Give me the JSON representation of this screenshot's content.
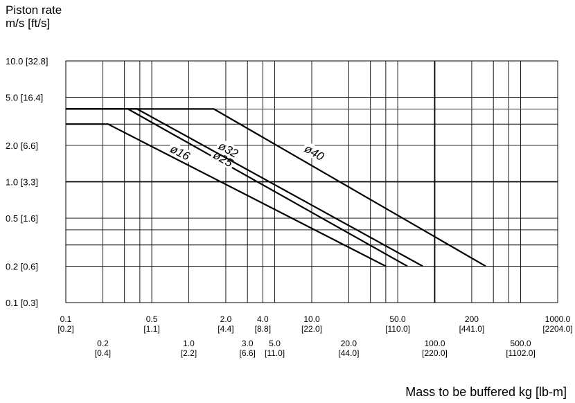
{
  "chart_data": {
    "type": "line",
    "ylabel_line1": "Piston rate",
    "ylabel_line2": "m/s [ft/s]",
    "xlabel": "Mass to be buffered kg [lb-m]",
    "x_scale": "log",
    "y_scale": "log",
    "xlim": [
      0.1,
      1000
    ],
    "ylim": [
      0.1,
      10
    ],
    "grid": true,
    "y_ticks": [
      {
        "value": 10,
        "label": "10.0 [32.8]"
      },
      {
        "value": 5,
        "label": "5.0 [16.4]"
      },
      {
        "value": 2,
        "label": "2.0 [6.6]"
      },
      {
        "value": 1,
        "label": "1.0 [3.3]"
      },
      {
        "value": 0.5,
        "label": "0.5 [1.6]"
      },
      {
        "value": 0.2,
        "label": "0.2 [0.6]"
      },
      {
        "value": 0.1,
        "label": "0.1 [0.3]"
      }
    ],
    "x_ticks": [
      {
        "value": 0.1,
        "line1": "0.1",
        "line2": "[0.2]",
        "row": "high"
      },
      {
        "value": 0.2,
        "line1": "0.2",
        "line2": "[0.4]",
        "row": "low"
      },
      {
        "value": 0.5,
        "line1": "0.5",
        "line2": "[1.1]",
        "row": "high"
      },
      {
        "value": 1.0,
        "line1": "1.0",
        "line2": "[2.2]",
        "row": "low"
      },
      {
        "value": 2.0,
        "line1": "2.0",
        "line2": "[4.4]",
        "row": "high"
      },
      {
        "value": 3.0,
        "line1": "3.0",
        "line2": "[6.6]",
        "row": "low"
      },
      {
        "value": 4.0,
        "line1": "4.0",
        "line2": "[8.8]",
        "row": "high"
      },
      {
        "value": 5.0,
        "line1": "5.0",
        "line2": "[11.0]",
        "row": "low"
      },
      {
        "value": 10.0,
        "line1": "10.0",
        "line2": "[22.0]",
        "row": "high"
      },
      {
        "value": 20.0,
        "line1": "20.0",
        "line2": "[44.0]",
        "row": "low"
      },
      {
        "value": 50.0,
        "line1": "50.0",
        "line2": "[110.0]",
        "row": "high"
      },
      {
        "value": 100.0,
        "line1": "100.0",
        "line2": "[220.0]",
        "row": "low"
      },
      {
        "value": 200,
        "line1": "200",
        "line2": "[441.0]",
        "row": "high"
      },
      {
        "value": 500.0,
        "line1": "500.0",
        "line2": "[1102.0]",
        "row": "low"
      },
      {
        "value": 1000.0,
        "line1": "1000.0",
        "line2": "[2204.0]",
        "row": "high"
      }
    ],
    "x_grid": [
      0.2,
      0.3,
      0.4,
      0.5,
      1,
      2,
      3,
      4,
      5,
      10,
      20,
      30,
      40,
      50,
      100,
      200,
      300,
      400,
      500
    ],
    "y_grid": [
      0.2,
      0.3,
      0.4,
      0.5,
      1,
      2,
      3,
      4,
      5
    ],
    "y_grid_major": [
      1
    ],
    "x_grid_major": [
      100
    ],
    "series": [
      {
        "name": "ø16",
        "points": [
          [
            0.1,
            3.0
          ],
          [
            0.22,
            3.0
          ],
          [
            40,
            0.2
          ]
        ],
        "label_at": [
          0.85,
          1.75
        ]
      },
      {
        "name": "ø25",
        "points": [
          [
            0.1,
            4.0
          ],
          [
            0.32,
            4.0
          ],
          [
            60,
            0.2
          ]
        ],
        "label_at": [
          1.9,
          1.55
        ]
      },
      {
        "name": "ø32",
        "points": [
          [
            0.1,
            4.0
          ],
          [
            0.38,
            4.0
          ],
          [
            80,
            0.2
          ]
        ],
        "label_at": [
          2.1,
          1.85
        ]
      },
      {
        "name": "ø40",
        "points": [
          [
            0.1,
            4.0
          ],
          [
            1.6,
            4.0
          ],
          [
            260,
            0.2
          ]
        ],
        "label_at": [
          10.5,
          1.75
        ]
      }
    ]
  }
}
